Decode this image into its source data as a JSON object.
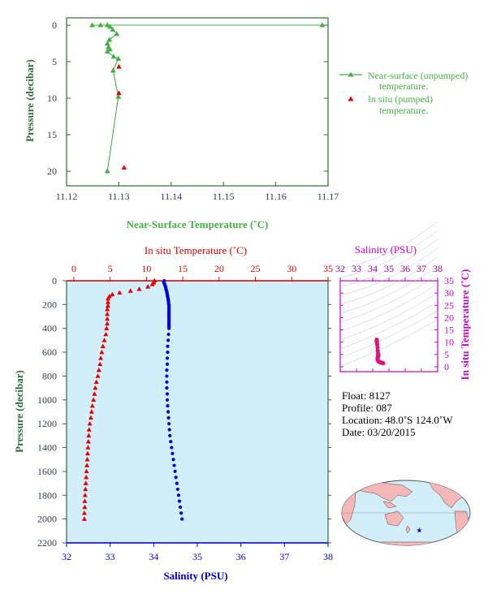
{
  "colors": {
    "green": "#44b044",
    "axis_green": "#2f6b3a",
    "red": "#e60000",
    "blue": "#0000dd",
    "magenta": "#cc00cc",
    "dark_magenta": "#9b009b",
    "plot_bg": "#d2eef8",
    "tick_text": "#304050",
    "text": "#000000"
  },
  "chart_data": [
    {
      "id": "near-surface",
      "type": "line",
      "xlabel": "Near-Surface Temperature (˚C)",
      "ylabel": "Pressure (decibar)",
      "xlim": [
        11.12,
        11.17
      ],
      "ylim": [
        22,
        -1
      ],
      "x_ticks": [
        "11.12",
        "11.13",
        "11.14",
        "11.15",
        "11.16",
        "11.17"
      ],
      "y_ticks": [
        "0",
        "5",
        "10",
        "15",
        "20"
      ],
      "series": [
        {
          "name": "Near-surface (unpumped) temperature.",
          "marker": "triangle",
          "points": [
            [
              11.1689,
              0.0
            ],
            [
              11.1249,
              0.0
            ],
            [
              11.1265,
              0.0
            ],
            [
              11.1278,
              0.0
            ],
            [
              11.1283,
              0.2
            ],
            [
              11.1288,
              0.6
            ],
            [
              11.1296,
              1.2
            ],
            [
              11.1282,
              2.0
            ],
            [
              11.1278,
              2.5
            ],
            [
              11.128,
              3.0
            ],
            [
              11.1283,
              3.3
            ],
            [
              11.1278,
              3.6
            ],
            [
              11.129,
              4.3
            ],
            [
              11.1299,
              4.6
            ],
            [
              11.1289,
              6.2
            ],
            [
              11.1299,
              9.8
            ],
            [
              11.1278,
              20.0
            ]
          ]
        },
        {
          "name": "In situ (pumped) temperature.",
          "marker": "triangle",
          "points": [
            [
              11.13,
              5.7
            ],
            [
              11.13,
              9.3
            ],
            [
              11.131,
              19.5
            ]
          ]
        }
      ]
    },
    {
      "id": "profile",
      "type": "scatter",
      "ylabel": "Pressure (decibar)",
      "top_xlabel": "In situ Temperature (˚C)",
      "bottom_xlabel": "Salinity (PSU)",
      "temp_lim": [
        -1,
        35
      ],
      "sal_lim": [
        32,
        38
      ],
      "ylim": [
        0,
        2200
      ],
      "temp_ticks": [
        "0",
        "5",
        "10",
        "15",
        "20",
        "25",
        "30",
        "35"
      ],
      "sal_ticks": [
        "32",
        "33",
        "34",
        "35",
        "36",
        "37",
        "38"
      ],
      "y_ticks": [
        "0",
        "200",
        "400",
        "600",
        "800",
        "1000",
        "1200",
        "1400",
        "1600",
        "1800",
        "2000",
        "2200"
      ],
      "temperature_profile": [
        [
          11.1,
          0
        ],
        [
          11.0,
          15
        ],
        [
          10.8,
          30
        ],
        [
          10.2,
          50
        ],
        [
          9.0,
          70
        ],
        [
          7.8,
          85
        ],
        [
          6.3,
          100
        ],
        [
          5.3,
          115
        ],
        [
          4.9,
          130
        ],
        [
          4.7,
          150
        ],
        [
          4.7,
          180
        ],
        [
          4.7,
          210
        ],
        [
          4.6,
          240
        ],
        [
          4.6,
          280
        ],
        [
          4.6,
          320
        ],
        [
          4.6,
          360
        ],
        [
          4.5,
          400
        ],
        [
          4.4,
          450
        ],
        [
          4.2,
          500
        ],
        [
          4.0,
          550
        ],
        [
          3.85,
          600
        ],
        [
          3.7,
          650
        ],
        [
          3.6,
          700
        ],
        [
          3.45,
          750
        ],
        [
          3.3,
          800
        ],
        [
          3.1,
          850
        ],
        [
          2.95,
          900
        ],
        [
          2.85,
          950
        ],
        [
          2.7,
          1000
        ],
        [
          2.55,
          1050
        ],
        [
          2.45,
          1100
        ],
        [
          2.35,
          1150
        ],
        [
          2.2,
          1200
        ],
        [
          2.1,
          1250
        ],
        [
          2.05,
          1300
        ],
        [
          2.0,
          1350
        ],
        [
          1.95,
          1400
        ],
        [
          1.9,
          1450
        ],
        [
          1.85,
          1500
        ],
        [
          1.8,
          1550
        ],
        [
          1.75,
          1600
        ],
        [
          1.7,
          1650
        ],
        [
          1.65,
          1700
        ],
        [
          1.6,
          1750
        ],
        [
          1.55,
          1800
        ],
        [
          1.5,
          1850
        ],
        [
          1.5,
          1900
        ],
        [
          1.45,
          1950
        ],
        [
          1.45,
          2000
        ]
      ],
      "salinity_profile": [
        [
          34.24,
          0
        ],
        [
          34.23,
          10
        ],
        [
          34.24,
          20
        ],
        [
          34.25,
          30
        ],
        [
          34.26,
          40
        ],
        [
          34.27,
          50
        ],
        [
          34.28,
          60
        ],
        [
          34.28,
          70
        ],
        [
          34.29,
          80
        ],
        [
          34.3,
          90
        ],
        [
          34.3,
          100
        ],
        [
          34.31,
          110
        ],
        [
          34.31,
          120
        ],
        [
          34.32,
          130
        ],
        [
          34.32,
          140
        ],
        [
          34.33,
          150
        ],
        [
          34.33,
          160
        ],
        [
          34.34,
          170
        ],
        [
          34.34,
          180
        ],
        [
          34.34,
          190
        ],
        [
          34.35,
          200
        ],
        [
          34.35,
          210
        ],
        [
          34.35,
          220
        ],
        [
          34.35,
          230
        ],
        [
          34.35,
          240
        ],
        [
          34.35,
          250
        ],
        [
          34.35,
          260
        ],
        [
          34.35,
          270
        ],
        [
          34.35,
          280
        ],
        [
          34.35,
          290
        ],
        [
          34.35,
          300
        ],
        [
          34.35,
          310
        ],
        [
          34.35,
          320
        ],
        [
          34.35,
          330
        ],
        [
          34.35,
          340
        ],
        [
          34.35,
          350
        ],
        [
          34.35,
          360
        ],
        [
          34.35,
          370
        ],
        [
          34.35,
          380
        ],
        [
          34.35,
          390
        ],
        [
          34.35,
          400
        ],
        [
          34.34,
          450
        ],
        [
          34.33,
          500
        ],
        [
          34.32,
          550
        ],
        [
          34.32,
          600
        ],
        [
          34.31,
          650
        ],
        [
          34.31,
          700
        ],
        [
          34.3,
          750
        ],
        [
          34.3,
          800
        ],
        [
          34.3,
          850
        ],
        [
          34.3,
          900
        ],
        [
          34.31,
          950
        ],
        [
          34.31,
          1000
        ],
        [
          34.32,
          1050
        ],
        [
          34.33,
          1100
        ],
        [
          34.34,
          1150
        ],
        [
          34.35,
          1200
        ],
        [
          34.36,
          1250
        ],
        [
          34.37,
          1300
        ],
        [
          34.39,
          1350
        ],
        [
          34.41,
          1400
        ],
        [
          34.43,
          1450
        ],
        [
          34.45,
          1500
        ],
        [
          34.47,
          1550
        ],
        [
          34.49,
          1600
        ],
        [
          34.51,
          1650
        ],
        [
          34.53,
          1700
        ],
        [
          34.55,
          1750
        ],
        [
          34.57,
          1800
        ],
        [
          34.59,
          1850
        ],
        [
          34.61,
          1900
        ],
        [
          34.63,
          1950
        ],
        [
          34.65,
          2000
        ]
      ]
    },
    {
      "id": "ts-diagram",
      "type": "scatter",
      "title": "Salinity (PSU)",
      "ylabel": "In situ Temperature (˚C)",
      "xlim": [
        32,
        38
      ],
      "ylim": [
        -2,
        35
      ],
      "x_ticks": [
        "32",
        "33",
        "34",
        "35",
        "36",
        "37",
        "38"
      ],
      "y_ticks": [
        "0",
        "5",
        "10",
        "15",
        "20",
        "25",
        "30",
        "35"
      ],
      "ts_points": [
        [
          34.25,
          11.0
        ],
        [
          34.24,
          10.5
        ],
        [
          34.26,
          10.0
        ],
        [
          34.28,
          9.0
        ],
        [
          34.3,
          7.8
        ],
        [
          34.31,
          6.5
        ],
        [
          34.33,
          5.4
        ],
        [
          34.34,
          4.9
        ],
        [
          34.35,
          4.7
        ],
        [
          34.35,
          4.6
        ],
        [
          34.34,
          4.5
        ],
        [
          34.33,
          4.3
        ],
        [
          34.32,
          4.0
        ],
        [
          34.31,
          3.8
        ],
        [
          34.3,
          3.6
        ],
        [
          34.3,
          3.3
        ],
        [
          34.3,
          3.0
        ],
        [
          34.31,
          2.8
        ],
        [
          34.32,
          2.5
        ],
        [
          34.35,
          2.2
        ],
        [
          34.39,
          2.0
        ],
        [
          34.45,
          1.8
        ],
        [
          34.51,
          1.75
        ],
        [
          34.57,
          1.6
        ],
        [
          34.63,
          1.45
        ],
        [
          34.65,
          1.4
        ]
      ]
    }
  ],
  "legend": {
    "entries": [
      {
        "label_line1": "Near-surface (unpumped)",
        "label_line2": "temperature."
      },
      {
        "label_line1": "In situ (pumped)",
        "label_line2": "temperature."
      }
    ]
  },
  "info": {
    "float": "Float:  8127",
    "profile": "Profile:  087",
    "location": "Location:  48.0˚S  124.0˚W",
    "date": "Date:  03/20/2015"
  },
  "map": {
    "marker_lon": -124.0,
    "marker_lat": -48.0
  }
}
